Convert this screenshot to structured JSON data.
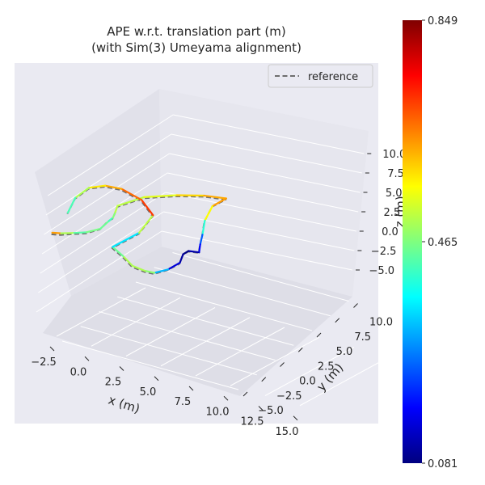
{
  "chart_data": {
    "type": "line",
    "projection": "3d",
    "title": "APE w.r.t. translation part (m)\n(with Sim(3) Umeyama alignment)",
    "title_lines": [
      "APE w.r.t. translation part (m)",
      "(with Sim(3) Umeyama alignment)"
    ],
    "xlabel": "x (m)",
    "ylabel": "y (m)",
    "zlabel": "z (m)",
    "x_ticks": [
      "−2.5",
      "0.0",
      "2.5",
      "5.0",
      "7.5",
      "10.0",
      "12.5",
      "15.0"
    ],
    "y_ticks": [
      "−5.0",
      "−2.5",
      "0.0",
      "2.5",
      "5.0",
      "7.5",
      "10.0"
    ],
    "z_ticks": [
      "−5.0",
      "−2.5",
      "0.0",
      "2.5",
      "5.0",
      "7.5",
      "10.0"
    ],
    "xlim": [
      -3.5,
      16
    ],
    "ylim": [
      -6,
      11.5
    ],
    "zlim": [
      -6,
      11.5
    ],
    "grid": true,
    "legend": {
      "position": "top-right",
      "entries": [
        {
          "label": "reference",
          "style": "dashed",
          "color": "#6e6e6e"
        }
      ]
    },
    "colorbar": {
      "min": 0.081,
      "mid": 0.465,
      "max": 0.849,
      "tick_labels": [
        "0.849",
        "0.465",
        "0.081"
      ],
      "colormap": "jet",
      "colors": [
        "#00007f",
        "#0000ff",
        "#007fff",
        "#00ffff",
        "#7fff7f",
        "#ffff00",
        "#ff7f00",
        "#ff0000",
        "#7f0000"
      ]
    },
    "series": [
      {
        "name": "reference",
        "style": "dashed",
        "color": "#6e6e6e",
        "x": [
          -0.5,
          0.5,
          1.5,
          2.5,
          3.5,
          4.0,
          3.5,
          2.5,
          1.5,
          2.8,
          5.0,
          7.0,
          8.8,
          8.4,
          9.5,
          10.8,
          11.8,
          12.6,
          12.2,
          12.6,
          13.2,
          13.0,
          12.0,
          10.8,
          9.0,
          7.5,
          6.8,
          7.5,
          7.0,
          5.0,
          2.5,
          0.8,
          -0.6,
          -1.0,
          -0.5
        ],
        "y": [
          -1.0,
          -1.2,
          -0.8,
          -0.5,
          0.0,
          0.5,
          2.0,
          4.0,
          6.0,
          8.0,
          9.5,
          10.5,
          11.0,
          9.5,
          6.5,
          4.0,
          2.0,
          0.5,
          -0.5,
          -2.0,
          -3.5,
          -5.0,
          -5.5,
          -5.0,
          -4.0,
          -3.0,
          -3.5,
          -0.5,
          2.5,
          4.0,
          5.0,
          5.2,
          5.0,
          3.5,
          1.5
        ],
        "z": [
          0.5,
          1.0,
          1.5,
          2.0,
          3.0,
          4.5,
          4.0,
          3.5,
          3.2,
          4.5,
          5.3,
          5.8,
          6.0,
          5.2,
          4.5,
          3.8,
          3.5,
          3.3,
          3.8,
          4.0,
          3.5,
          3.0,
          2.0,
          1.5,
          1.0,
          1.5,
          3.0,
          4.5,
          6.0,
          7.0,
          7.2,
          6.8,
          5.8,
          4.5,
          3.0
        ]
      },
      {
        "name": "",
        "style": "solid",
        "x": [
          -0.3,
          0.6,
          1.6,
          2.6,
          3.6,
          4.1,
          3.6,
          2.6,
          1.6,
          2.9,
          5.1,
          7.1,
          8.9,
          8.5,
          9.6,
          10.9,
          11.9,
          12.7,
          12.3,
          12.7,
          13.3,
          13.1,
          12.1,
          10.9,
          9.1,
          7.6,
          6.9,
          7.6,
          7.1,
          5.1,
          2.6,
          0.9,
          -0.5,
          -0.9,
          -0.4
        ],
        "y": [
          -1.2,
          -1.3,
          -0.9,
          -0.6,
          -0.1,
          0.4,
          1.9,
          3.9,
          5.9,
          7.9,
          9.4,
          10.4,
          10.9,
          9.4,
          6.4,
          3.9,
          1.9,
          0.4,
          -0.6,
          -2.1,
          -3.6,
          -5.1,
          -5.6,
          -5.1,
          -4.1,
          -3.1,
          -3.6,
          -0.6,
          2.4,
          3.9,
          4.9,
          5.1,
          4.9,
          3.4,
          1.4
        ],
        "z": [
          1.0,
          1.4,
          1.8,
          2.3,
          3.2,
          4.6,
          4.3,
          3.8,
          3.5,
          4.8,
          5.6,
          6.1,
          6.3,
          5.4,
          4.8,
          4.1,
          3.8,
          3.5,
          4.0,
          4.3,
          3.8,
          3.2,
          2.3,
          1.8,
          1.3,
          1.8,
          3.3,
          4.8,
          6.3,
          7.3,
          7.5,
          7.1,
          6.1,
          4.8,
          3.3
        ],
        "error": [
          0.72,
          0.55,
          0.45,
          0.42,
          0.5,
          0.4,
          0.44,
          0.5,
          0.52,
          0.5,
          0.58,
          0.6,
          0.65,
          0.62,
          0.5,
          0.3,
          0.2,
          0.15,
          0.08,
          0.09,
          0.12,
          0.18,
          0.45,
          0.5,
          0.5,
          0.5,
          0.4,
          0.3,
          0.72,
          0.7,
          0.65,
          0.6,
          0.55,
          0.45,
          0.4
        ]
      }
    ]
  }
}
